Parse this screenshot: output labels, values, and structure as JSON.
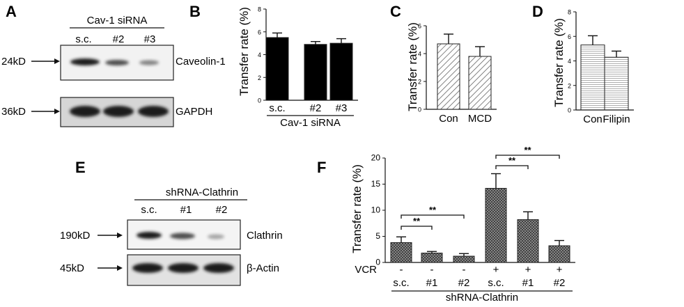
{
  "panels": {
    "A": {
      "letter": "A",
      "group_label": "Cav-1 siRNA",
      "lanes": [
        "s.c.",
        "#2",
        "#3"
      ],
      "blots": [
        {
          "marker": "24kD",
          "protein": "Caveolin-1",
          "band_intensity": [
            1.0,
            0.65,
            0.5
          ]
        },
        {
          "marker": "36kD",
          "protein": "GAPDH",
          "band_intensity": [
            1.0,
            1.0,
            1.0
          ]
        }
      ]
    },
    "E": {
      "letter": "E",
      "group_label": "shRNA-Clathrin",
      "lanes": [
        "s.c.",
        "#1",
        "#2"
      ],
      "blots": [
        {
          "marker": "190kD",
          "protein": "Clathrin",
          "band_intensity": [
            1.0,
            0.7,
            0.3
          ]
        },
        {
          "marker": "45kD",
          "protein": "β-Actin",
          "band_intensity": [
            1.0,
            1.0,
            1.0
          ]
        }
      ]
    }
  },
  "chart_data": [
    {
      "panel": "B",
      "type": "bar",
      "ylabel": "Transfer rate (%)",
      "ylim": [
        0,
        8
      ],
      "yticks": [
        0,
        2,
        4,
        6,
        8
      ],
      "categories": [
        "s.c.",
        "#2",
        "#3"
      ],
      "values": [
        5.5,
        4.9,
        5.0
      ],
      "errors": [
        0.4,
        0.25,
        0.4
      ],
      "group_label": "Cav-1 siRNA",
      "fill": "solid",
      "color": "#000000"
    },
    {
      "panel": "C",
      "type": "bar",
      "ylabel": "Transfer rate (%)",
      "ylim": [
        0,
        6
      ],
      "yticks": [
        0,
        2,
        4,
        6
      ],
      "categories": [
        "Con",
        "MCD"
      ],
      "values": [
        4.7,
        3.8
      ],
      "errors": [
        0.7,
        0.7
      ],
      "fill": "diagonal-hatch",
      "color": "#555555"
    },
    {
      "panel": "D",
      "type": "bar",
      "ylabel": "Transfer rate (%)",
      "ylim": [
        0,
        8
      ],
      "yticks": [
        0,
        2,
        4,
        6,
        8
      ],
      "categories": [
        "Con",
        "Filipin"
      ],
      "values": [
        5.3,
        4.3
      ],
      "errors": [
        0.75,
        0.5
      ],
      "fill": "horizontal-lines",
      "color": "#888888"
    },
    {
      "panel": "F",
      "type": "bar",
      "ylabel": "Transfer rate (%)",
      "ylim": [
        0,
        20
      ],
      "yticks": [
        0,
        5,
        10,
        15,
        20
      ],
      "categories": [
        "s.c.",
        "#1",
        "#2",
        "s.c.",
        "#1",
        "#2"
      ],
      "vcr": [
        "-",
        "-",
        "-",
        "+",
        "+",
        "+"
      ],
      "vcr_label": "VCR",
      "values": [
        3.8,
        1.8,
        1.2,
        14.2,
        8.2,
        3.2
      ],
      "errors": [
        1.1,
        0.3,
        0.5,
        2.8,
        1.5,
        1.0
      ],
      "group_label": "shRNA-Clathrin",
      "fill": "crosshatch",
      "color": "#666666",
      "significance": [
        {
          "from": 0,
          "to": 1,
          "label": "**",
          "level": 1
        },
        {
          "from": 0,
          "to": 2,
          "label": "**",
          "level": 2
        },
        {
          "from": 3,
          "to": 4,
          "label": "**",
          "level": 1
        },
        {
          "from": 3,
          "to": 5,
          "label": "**",
          "level": 2
        }
      ]
    }
  ]
}
